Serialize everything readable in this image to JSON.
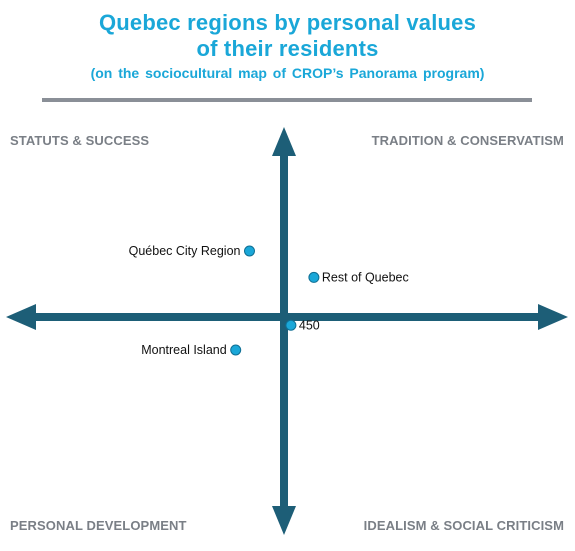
{
  "title": {
    "line1": "Quebec regions by personal values",
    "line2": "of their residents",
    "subtitle": "(on the sociocultural  map of CROP’s Panorama  program)"
  },
  "quadrants": {
    "top_left": "STATUTS & SUCCESS",
    "top_right": "TRADITION  & CONSERVATISM",
    "bottom_left": "PERSONAL DEVELOPMENT",
    "bottom_right": "IDEALISM & SOCIAL CRITICISM"
  },
  "colors": {
    "title": "#1aa7d8",
    "axis": "#1d5e77",
    "point": "#1aa7d8",
    "point_stroke": "#0f6f94",
    "quadrant_label": "#7a7f86",
    "rule": "#8a8f97"
  },
  "chart_data": {
    "type": "scatter",
    "xlim": [
      -10,
      10
    ],
    "ylim": [
      -10,
      10
    ],
    "grid": false,
    "points": [
      {
        "label": "Québec City Region",
        "x": -1.5,
        "y": 4.0,
        "label_side": "left"
      },
      {
        "label": "Rest of Quebec",
        "x": 1.3,
        "y": 2.4,
        "label_side": "right"
      },
      {
        "label": "450",
        "x": 0.3,
        "y": -0.5,
        "label_side": "right"
      },
      {
        "label": "Montreal Island",
        "x": -2.1,
        "y": -2.0,
        "label_side": "left"
      }
    ]
  }
}
